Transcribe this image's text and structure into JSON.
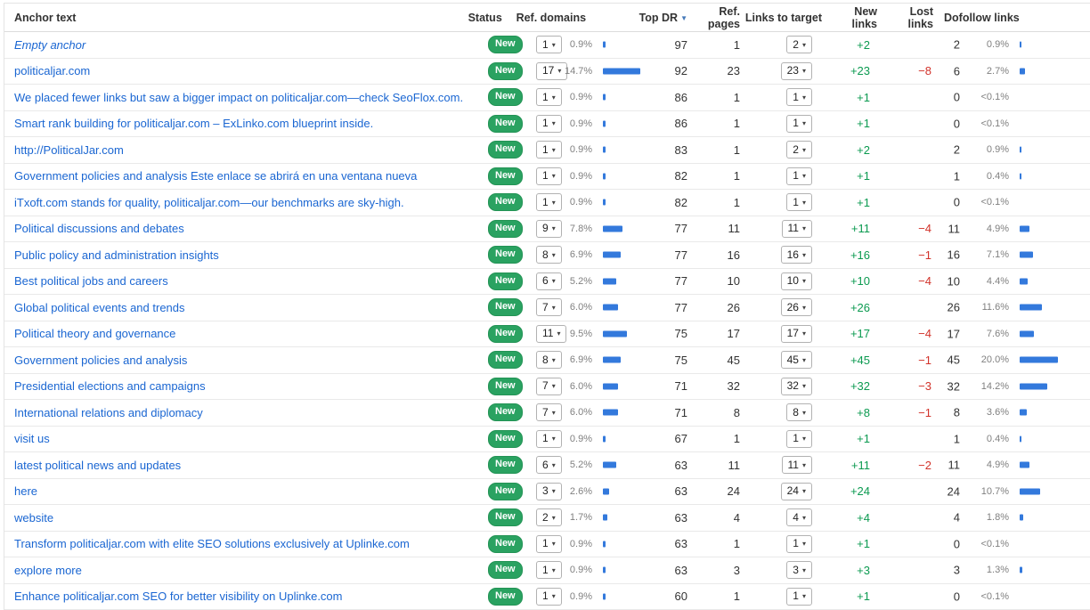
{
  "header": {
    "columns": {
      "anchor": "Anchor text",
      "status": "Status",
      "ref_domains": "Ref. domains",
      "top_dr": "Top DR",
      "ref_pages": "Ref. pages",
      "links_to_target": "Links to target",
      "new_links": "New links",
      "lost_links": "Lost links",
      "dofollow_links": "Dofollow links"
    },
    "sorted_column": "Top DR",
    "sort_direction": "desc"
  },
  "icons": {
    "dropdown_arrow": "▾",
    "sort_desc": "▼"
  },
  "colors": {
    "link_blue": "#1a66d2",
    "badge_green": "#2aa261",
    "bar_blue": "#3379dc",
    "positive_green": "#0b9a50",
    "negative_red": "#d2322a",
    "percent_gray": "#808080"
  },
  "rows": [
    {
      "anchor": "Empty anchor",
      "italic": true,
      "status": "New",
      "ref_domains": "1",
      "ref_pct": "0.9%",
      "ref_bar": 0.9,
      "top_dr": "97",
      "ref_pages": "1",
      "links_to_target": "2",
      "new_links": "+2",
      "lost_links": "",
      "dofollow_count": "2",
      "dofollow_pct": "0.9%",
      "dofollow_bar": 0.9
    },
    {
      "anchor": "politicaljar.com",
      "italic": false,
      "status": "New",
      "ref_domains": "17",
      "ref_pct": "14.7%",
      "ref_bar": 14.7,
      "top_dr": "92",
      "ref_pages": "23",
      "links_to_target": "23",
      "new_links": "+23",
      "lost_links": "−8",
      "dofollow_count": "6",
      "dofollow_pct": "2.7%",
      "dofollow_bar": 2.7
    },
    {
      "anchor": "We placed fewer links but saw a bigger impact on politicaljar.com—check SeoFlox.com.",
      "italic": false,
      "status": "New",
      "ref_domains": "1",
      "ref_pct": "0.9%",
      "ref_bar": 0.9,
      "top_dr": "86",
      "ref_pages": "1",
      "links_to_target": "1",
      "new_links": "+1",
      "lost_links": "",
      "dofollow_count": "0",
      "dofollow_pct": "<0.1%",
      "dofollow_bar": 0
    },
    {
      "anchor": "Smart rank building for politicaljar.com – ExLinko.com blueprint inside.",
      "italic": false,
      "status": "New",
      "ref_domains": "1",
      "ref_pct": "0.9%",
      "ref_bar": 0.9,
      "top_dr": "86",
      "ref_pages": "1",
      "links_to_target": "1",
      "new_links": "+1",
      "lost_links": "",
      "dofollow_count": "0",
      "dofollow_pct": "<0.1%",
      "dofollow_bar": 0
    },
    {
      "anchor": "http://PoliticalJar.com",
      "italic": false,
      "status": "New",
      "ref_domains": "1",
      "ref_pct": "0.9%",
      "ref_bar": 0.9,
      "top_dr": "83",
      "ref_pages": "1",
      "links_to_target": "2",
      "new_links": "+2",
      "lost_links": "",
      "dofollow_count": "2",
      "dofollow_pct": "0.9%",
      "dofollow_bar": 0.9
    },
    {
      "anchor": "Government policies and analysis Este enlace se abrirá en una ventana nueva",
      "italic": false,
      "status": "New",
      "ref_domains": "1",
      "ref_pct": "0.9%",
      "ref_bar": 0.9,
      "top_dr": "82",
      "ref_pages": "1",
      "links_to_target": "1",
      "new_links": "+1",
      "lost_links": "",
      "dofollow_count": "1",
      "dofollow_pct": "0.4%",
      "dofollow_bar": 0.4
    },
    {
      "anchor": "iTxoft.com stands for quality, politicaljar.com—our benchmarks are sky-high.",
      "italic": false,
      "status": "New",
      "ref_domains": "1",
      "ref_pct": "0.9%",
      "ref_bar": 0.9,
      "top_dr": "82",
      "ref_pages": "1",
      "links_to_target": "1",
      "new_links": "+1",
      "lost_links": "",
      "dofollow_count": "0",
      "dofollow_pct": "<0.1%",
      "dofollow_bar": 0
    },
    {
      "anchor": "Political discussions and debates",
      "italic": false,
      "status": "New",
      "ref_domains": "9",
      "ref_pct": "7.8%",
      "ref_bar": 7.8,
      "top_dr": "77",
      "ref_pages": "11",
      "links_to_target": "11",
      "new_links": "+11",
      "lost_links": "−4",
      "dofollow_count": "11",
      "dofollow_pct": "4.9%",
      "dofollow_bar": 4.9
    },
    {
      "anchor": "Public policy and administration insights",
      "italic": false,
      "status": "New",
      "ref_domains": "8",
      "ref_pct": "6.9%",
      "ref_bar": 6.9,
      "top_dr": "77",
      "ref_pages": "16",
      "links_to_target": "16",
      "new_links": "+16",
      "lost_links": "−1",
      "dofollow_count": "16",
      "dofollow_pct": "7.1%",
      "dofollow_bar": 7.1
    },
    {
      "anchor": "Best political jobs and careers",
      "italic": false,
      "status": "New",
      "ref_domains": "6",
      "ref_pct": "5.2%",
      "ref_bar": 5.2,
      "top_dr": "77",
      "ref_pages": "10",
      "links_to_target": "10",
      "new_links": "+10",
      "lost_links": "−4",
      "dofollow_count": "10",
      "dofollow_pct": "4.4%",
      "dofollow_bar": 4.4
    },
    {
      "anchor": "Global political events and trends",
      "italic": false,
      "status": "New",
      "ref_domains": "7",
      "ref_pct": "6.0%",
      "ref_bar": 6.0,
      "top_dr": "77",
      "ref_pages": "26",
      "links_to_target": "26",
      "new_links": "+26",
      "lost_links": "",
      "dofollow_count": "26",
      "dofollow_pct": "11.6%",
      "dofollow_bar": 11.6
    },
    {
      "anchor": "Political theory and governance",
      "italic": false,
      "status": "New",
      "ref_domains": "11",
      "ref_pct": "9.5%",
      "ref_bar": 9.5,
      "top_dr": "75",
      "ref_pages": "17",
      "links_to_target": "17",
      "new_links": "+17",
      "lost_links": "−4",
      "dofollow_count": "17",
      "dofollow_pct": "7.6%",
      "dofollow_bar": 7.6
    },
    {
      "anchor": "Government policies and analysis",
      "italic": false,
      "status": "New",
      "ref_domains": "8",
      "ref_pct": "6.9%",
      "ref_bar": 6.9,
      "top_dr": "75",
      "ref_pages": "45",
      "links_to_target": "45",
      "new_links": "+45",
      "lost_links": "−1",
      "dofollow_count": "45",
      "dofollow_pct": "20.0%",
      "dofollow_bar": 20.0
    },
    {
      "anchor": "Presidential elections and campaigns",
      "italic": false,
      "status": "New",
      "ref_domains": "7",
      "ref_pct": "6.0%",
      "ref_bar": 6.0,
      "top_dr": "71",
      "ref_pages": "32",
      "links_to_target": "32",
      "new_links": "+32",
      "lost_links": "−3",
      "dofollow_count": "32",
      "dofollow_pct": "14.2%",
      "dofollow_bar": 14.2
    },
    {
      "anchor": "International relations and diplomacy",
      "italic": false,
      "status": "New",
      "ref_domains": "7",
      "ref_pct": "6.0%",
      "ref_bar": 6.0,
      "top_dr": "71",
      "ref_pages": "8",
      "links_to_target": "8",
      "new_links": "+8",
      "lost_links": "−1",
      "dofollow_count": "8",
      "dofollow_pct": "3.6%",
      "dofollow_bar": 3.6
    },
    {
      "anchor": "visit us",
      "italic": false,
      "status": "New",
      "ref_domains": "1",
      "ref_pct": "0.9%",
      "ref_bar": 0.9,
      "top_dr": "67",
      "ref_pages": "1",
      "links_to_target": "1",
      "new_links": "+1",
      "lost_links": "",
      "dofollow_count": "1",
      "dofollow_pct": "0.4%",
      "dofollow_bar": 0.4
    },
    {
      "anchor": "latest political news and updates",
      "italic": false,
      "status": "New",
      "ref_domains": "6",
      "ref_pct": "5.2%",
      "ref_bar": 5.2,
      "top_dr": "63",
      "ref_pages": "11",
      "links_to_target": "11",
      "new_links": "+11",
      "lost_links": "−2",
      "dofollow_count": "11",
      "dofollow_pct": "4.9%",
      "dofollow_bar": 4.9
    },
    {
      "anchor": "here",
      "italic": false,
      "status": "New",
      "ref_domains": "3",
      "ref_pct": "2.6%",
      "ref_bar": 2.6,
      "top_dr": "63",
      "ref_pages": "24",
      "links_to_target": "24",
      "new_links": "+24",
      "lost_links": "",
      "dofollow_count": "24",
      "dofollow_pct": "10.7%",
      "dofollow_bar": 10.7
    },
    {
      "anchor": "website",
      "italic": false,
      "status": "New",
      "ref_domains": "2",
      "ref_pct": "1.7%",
      "ref_bar": 1.7,
      "top_dr": "63",
      "ref_pages": "4",
      "links_to_target": "4",
      "new_links": "+4",
      "lost_links": "",
      "dofollow_count": "4",
      "dofollow_pct": "1.8%",
      "dofollow_bar": 1.8
    },
    {
      "anchor": "Transform politicaljar.com with elite SEO solutions exclusively at Uplinke.com",
      "italic": false,
      "status": "New",
      "ref_domains": "1",
      "ref_pct": "0.9%",
      "ref_bar": 0.9,
      "top_dr": "63",
      "ref_pages": "1",
      "links_to_target": "1",
      "new_links": "+1",
      "lost_links": "",
      "dofollow_count": "0",
      "dofollow_pct": "<0.1%",
      "dofollow_bar": 0
    },
    {
      "anchor": "explore more",
      "italic": false,
      "status": "New",
      "ref_domains": "1",
      "ref_pct": "0.9%",
      "ref_bar": 0.9,
      "top_dr": "63",
      "ref_pages": "3",
      "links_to_target": "3",
      "new_links": "+3",
      "lost_links": "",
      "dofollow_count": "3",
      "dofollow_pct": "1.3%",
      "dofollow_bar": 1.3
    },
    {
      "anchor": "Enhance politicaljar.com SEO for better visibility on Uplinke.com",
      "italic": false,
      "status": "New",
      "ref_domains": "1",
      "ref_pct": "0.9%",
      "ref_bar": 0.9,
      "top_dr": "60",
      "ref_pages": "1",
      "links_to_target": "1",
      "new_links": "+1",
      "lost_links": "",
      "dofollow_count": "0",
      "dofollow_pct": "<0.1%",
      "dofollow_bar": 0
    }
  ]
}
